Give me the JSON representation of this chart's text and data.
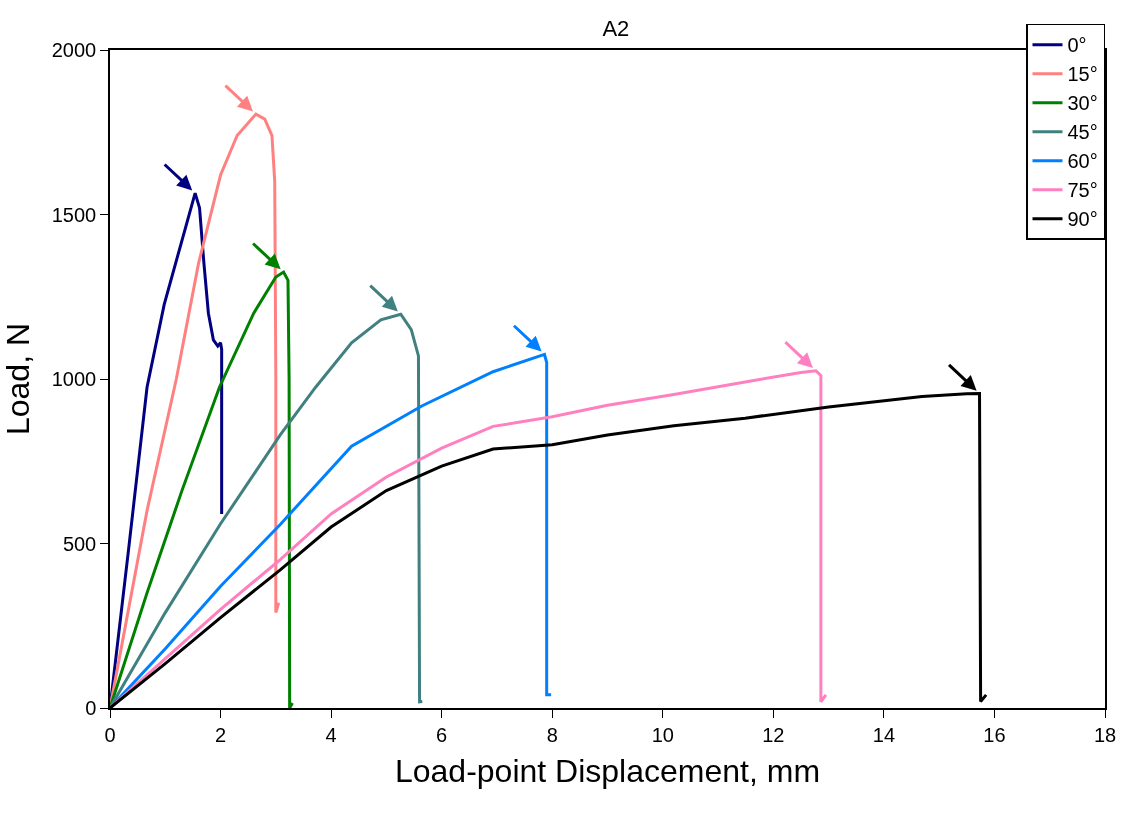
{
  "chart_data": {
    "type": "line",
    "title": "A2",
    "xlabel": "Load-point Displacement, mm",
    "ylabel": "Load, N",
    "xlim": [
      0,
      18
    ],
    "xticks": [
      0,
      2,
      4,
      6,
      8,
      10,
      12,
      14,
      16,
      18
    ],
    "ylim": [
      0,
      2000
    ],
    "yticks": [
      0,
      500,
      1000,
      1500,
      2000
    ],
    "legend": "top right",
    "marker": "none",
    "line_style": "solid",
    "series": [
      {
        "name": "0°",
        "color": "#000080",
        "x": [
          0,
          0.33,
          0.67,
          0.98,
          1.29,
          1.54,
          1.62,
          1.7,
          1.78,
          1.87,
          1.95,
          2.0,
          2.02,
          2.02
        ],
        "values": [
          0,
          473,
          975,
          1226,
          1414,
          1565,
          1520,
          1350,
          1200,
          1119,
          1100,
          1110,
          1090,
          590
        ]
      },
      {
        "name": "15°",
        "color": "#ff8080",
        "x": [
          0,
          0.67,
          1.2,
          1.6,
          2.0,
          2.3,
          2.64,
          2.8,
          2.93,
          2.98,
          3.0,
          3.0,
          3.05
        ],
        "values": [
          0,
          600,
          1000,
          1350,
          1620,
          1740,
          1805,
          1790,
          1740,
          1600,
          1000,
          290,
          320
        ]
      },
      {
        "name": "30°",
        "color": "#008000",
        "x": [
          0,
          0.67,
          1.3,
          1.98,
          2.6,
          3.0,
          3.14,
          3.22,
          3.24,
          3.25,
          3.3
        ],
        "values": [
          0,
          350,
          660,
          975,
          1200,
          1310,
          1325,
          1300,
          1000,
          0,
          15
        ]
      },
      {
        "name": "45°",
        "color": "#408080",
        "x": [
          0,
          1.0,
          2.0,
          3.08,
          3.72,
          4.37,
          4.9,
          5.26,
          5.45,
          5.58,
          5.6,
          5.65
        ],
        "values": [
          0,
          290,
          560,
          830,
          975,
          1110,
          1180,
          1197,
          1150,
          1070,
          19,
          20
        ]
      },
      {
        "name": "60°",
        "color": "#0080ff",
        "x": [
          0,
          1,
          2,
          3.08,
          4.37,
          5.64,
          6.93,
          7.86,
          7.9,
          7.9,
          7.98
        ],
        "values": [
          0,
          180,
          370,
          558,
          796,
          918,
          1022,
          1075,
          1050,
          40,
          40
        ]
      },
      {
        "name": "75°",
        "color": "#ff80c0",
        "x": [
          0,
          1,
          2,
          3.08,
          4,
          5,
          6,
          6.93,
          8.0,
          9,
          10.2,
          11.49,
          12.5,
          12.77,
          12.86,
          12.86,
          12.95
        ],
        "values": [
          0,
          150,
          300,
          451,
          590,
          702,
          790,
          856,
          885,
          920,
          953,
          991,
          1020,
          1025,
          1010,
          19,
          40
        ]
      },
      {
        "name": "90°",
        "color": "#000000",
        "x": [
          0,
          1,
          2,
          3.08,
          4,
          5,
          6,
          6.93,
          8.0,
          9,
          10.2,
          11.49,
          13,
          14.69,
          15.5,
          15.73,
          15.75,
          15.85
        ],
        "values": [
          0,
          135,
          275,
          420,
          550,
          661,
          735,
          787,
          800,
          830,
          858,
          881,
          915,
          947,
          955,
          956,
          20,
          40
        ]
      }
    ]
  }
}
